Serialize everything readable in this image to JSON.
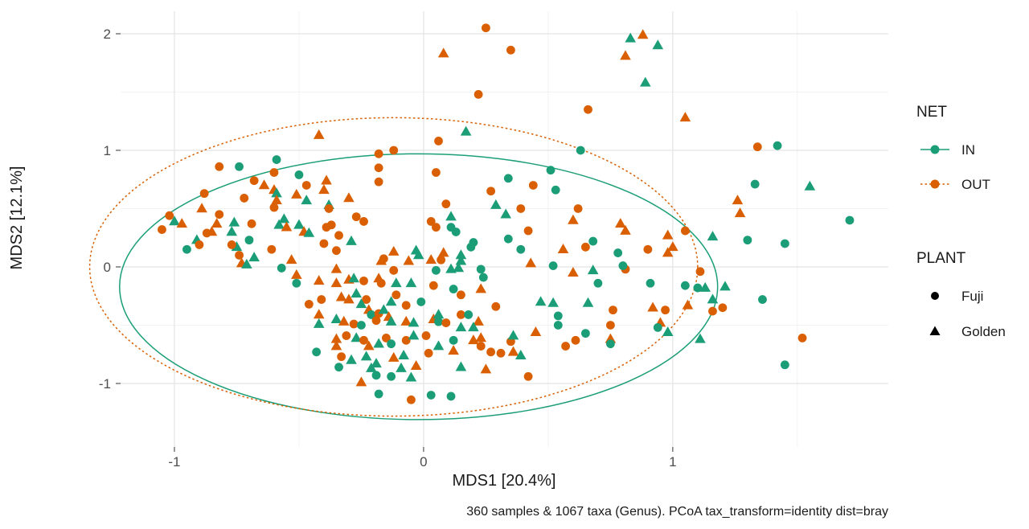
{
  "chart_data": {
    "type": "scatter",
    "xlabel": "MDS1 [20.4%]",
    "ylabel": "MDS2 [12.1%]",
    "caption": "360 samples & 1067 taxa (Genus). PCoA tax_transform=identity dist=bray",
    "x_axis": {
      "ticks": [
        -1,
        0,
        1
      ],
      "minor": [
        -0.5,
        0.5,
        1.5
      ],
      "range": [
        -1.216,
        1.865
      ]
    },
    "y_axis": {
      "ticks": [
        -1,
        0,
        1,
        2
      ],
      "minor": [
        -0.5,
        0.5,
        1.5
      ],
      "range": [
        -1.545,
        2.193
      ]
    },
    "groups": {
      "net": {
        "title": "NET",
        "levels": [
          "IN",
          "OUT"
        ],
        "colors": [
          "#1b9e77",
          "#d95f02"
        ],
        "linetypes": [
          "solid",
          "dashed"
        ]
      },
      "plant": {
        "title": "PLANT",
        "levels": [
          "Fuji",
          "Golden"
        ],
        "shapes": [
          "circle",
          "triangle"
        ],
        "color": "#000000"
      }
    },
    "ellipses": [
      {
        "net": "IN",
        "cx": -0.02,
        "cy": -0.17,
        "rx": 1.2,
        "ry": 1.14
      },
      {
        "net": "OUT",
        "cx": -0.12,
        "cy": 0.0,
        "rx": 1.22,
        "ry": 1.28
      }
    ],
    "points": [
      [
        0.25,
        2.05,
        1,
        0
      ],
      [
        0.35,
        1.86,
        1,
        0
      ],
      [
        0.08,
        1.83,
        1,
        1
      ],
      [
        0.83,
        1.96,
        0,
        1
      ],
      [
        0.88,
        1.99,
        1,
        1
      ],
      [
        0.94,
        1.9,
        0,
        1
      ],
      [
        0.81,
        1.81,
        1,
        1
      ],
      [
        0.89,
        1.58,
        0,
        1
      ],
      [
        0.22,
        1.48,
        1,
        0
      ],
      [
        0.66,
        1.35,
        1,
        0
      ],
      [
        1.05,
        1.28,
        1,
        1
      ],
      [
        -0.82,
        0.86,
        1,
        0
      ],
      [
        -0.74,
        0.86,
        0,
        0
      ],
      [
        -0.59,
        0.92,
        0,
        0
      ],
      [
        -0.6,
        0.81,
        1,
        0
      ],
      [
        -0.5,
        0.79,
        0,
        0
      ],
      [
        -0.68,
        0.74,
        1,
        0
      ],
      [
        -0.64,
        0.7,
        1,
        1
      ],
      [
        -0.47,
        0.7,
        1,
        0
      ],
      [
        -0.6,
        0.66,
        1,
        1
      ],
      [
        -0.88,
        0.63,
        1,
        0
      ],
      [
        -0.59,
        0.63,
        0,
        1
      ],
      [
        -0.51,
        0.62,
        1,
        1
      ],
      [
        -0.72,
        0.59,
        1,
        0
      ],
      [
        -0.59,
        0.57,
        1,
        1
      ],
      [
        -0.6,
        0.51,
        1,
        0
      ],
      [
        -0.47,
        0.57,
        0,
        1
      ],
      [
        -0.89,
        0.5,
        1,
        1
      ],
      [
        -1.02,
        0.44,
        1,
        0
      ],
      [
        -1.0,
        0.39,
        0,
        1
      ],
      [
        -0.97,
        0.37,
        1,
        1
      ],
      [
        -0.82,
        0.45,
        1,
        0
      ],
      [
        -0.83,
        0.37,
        1,
        1
      ],
      [
        -0.76,
        0.38,
        0,
        1
      ],
      [
        -0.56,
        0.41,
        0,
        1
      ],
      [
        -0.58,
        0.36,
        0,
        1
      ],
      [
        -0.55,
        0.34,
        1,
        1
      ],
      [
        -1.05,
        0.32,
        1,
        0
      ],
      [
        -0.69,
        0.37,
        1,
        0
      ],
      [
        -0.5,
        0.36,
        0,
        1
      ],
      [
        -0.48,
        0.3,
        1,
        1
      ],
      [
        -0.46,
        0.29,
        0,
        1
      ],
      [
        -0.87,
        0.29,
        1,
        0
      ],
      [
        -0.85,
        0.3,
        1,
        1
      ],
      [
        -0.77,
        0.3,
        0,
        1
      ],
      [
        -0.7,
        0.23,
        0,
        0
      ],
      [
        -0.91,
        0.23,
        0,
        1
      ],
      [
        -0.9,
        0.19,
        1,
        0
      ],
      [
        -0.95,
        0.15,
        0,
        0
      ],
      [
        -0.75,
        0.17,
        0,
        1
      ],
      [
        -0.77,
        0.19,
        1,
        0
      ],
      [
        -0.61,
        0.15,
        1,
        0
      ],
      [
        -0.74,
        0.1,
        1,
        0
      ],
      [
        -0.73,
        0.03,
        1,
        1
      ],
      [
        -0.68,
        0.08,
        0,
        1
      ],
      [
        -0.57,
        -0.01,
        0,
        0
      ],
      [
        -0.53,
        0.06,
        1,
        1
      ],
      [
        -0.71,
        0.02,
        0,
        1
      ],
      [
        -0.51,
        -0.07,
        1,
        1
      ],
      [
        -0.51,
        -0.14,
        0,
        0
      ],
      [
        -0.46,
        -0.32,
        1,
        0
      ],
      [
        -0.42,
        1.13,
        1,
        1
      ],
      [
        0.17,
        1.16,
        0,
        1
      ],
      [
        0.06,
        1.08,
        1,
        0
      ],
      [
        -0.18,
        0.97,
        1,
        0
      ],
      [
        -0.12,
        1.0,
        1,
        0
      ],
      [
        -0.18,
        0.85,
        1,
        0
      ],
      [
        0.05,
        0.81,
        1,
        0
      ],
      [
        -0.18,
        0.73,
        1,
        0
      ],
      [
        0.34,
        0.76,
        0,
        0
      ],
      [
        -0.39,
        0.74,
        1,
        1
      ],
      [
        -0.4,
        0.66,
        1,
        1
      ],
      [
        0.27,
        0.65,
        1,
        0
      ],
      [
        -0.3,
        0.59,
        1,
        1
      ],
      [
        0.29,
        0.53,
        0,
        1
      ],
      [
        -0.38,
        0.53,
        0,
        1
      ],
      [
        -0.38,
        0.5,
        1,
        0
      ],
      [
        0.09,
        0.54,
        1,
        0
      ],
      [
        0.33,
        0.45,
        0,
        1
      ],
      [
        -0.27,
        0.43,
        1,
        0
      ],
      [
        -0.24,
        0.39,
        1,
        0
      ],
      [
        -0.37,
        0.36,
        1,
        0
      ],
      [
        -0.39,
        0.34,
        1,
        0
      ],
      [
        -0.34,
        0.27,
        1,
        0
      ],
      [
        0.03,
        0.39,
        1,
        0
      ],
      [
        0.05,
        0.34,
        1,
        0
      ],
      [
        0.11,
        0.43,
        0,
        1
      ],
      [
        0.11,
        0.34,
        0,
        0
      ],
      [
        0.13,
        0.3,
        0,
        0
      ],
      [
        -0.4,
        0.2,
        1,
        0
      ],
      [
        -0.29,
        0.22,
        0,
        1
      ],
      [
        -0.35,
        0.14,
        1,
        0
      ],
      [
        0.34,
        0.24,
        0,
        0
      ],
      [
        -0.12,
        0.13,
        1,
        1
      ],
      [
        -0.03,
        0.14,
        0,
        1
      ],
      [
        -0.02,
        0.1,
        0,
        1
      ],
      [
        0.08,
        0.12,
        1,
        1
      ],
      [
        0.19,
        0.17,
        0,
        0
      ],
      [
        0.2,
        0.21,
        0,
        0
      ],
      [
        0.15,
        0.1,
        0,
        1
      ],
      [
        -0.16,
        0.07,
        1,
        0
      ],
      [
        -0.17,
        0.05,
        1,
        1
      ],
      [
        -0.12,
        -0.03,
        1,
        0
      ],
      [
        -0.06,
        0.05,
        1,
        1
      ],
      [
        0.03,
        0.06,
        1,
        1
      ],
      [
        0.07,
        0.06,
        1,
        0
      ],
      [
        0.15,
        0.05,
        0,
        1
      ],
      [
        0.05,
        -0.03,
        0,
        0
      ],
      [
        0.11,
        -0.02,
        0,
        1
      ],
      [
        0.14,
        -0.01,
        0,
        1
      ],
      [
        0.23,
        -0.02,
        0,
        0
      ],
      [
        0.24,
        -0.09,
        0,
        0
      ],
      [
        -0.35,
        -0.02,
        1,
        1
      ],
      [
        -0.42,
        -0.12,
        1,
        1
      ],
      [
        -0.35,
        -0.14,
        1,
        1
      ],
      [
        -0.3,
        -0.11,
        1,
        1
      ],
      [
        -0.28,
        -0.1,
        0,
        1
      ],
      [
        -0.24,
        -0.12,
        1,
        0
      ],
      [
        -0.18,
        -0.1,
        1,
        1
      ],
      [
        -0.17,
        -0.14,
        1,
        0
      ],
      [
        -0.11,
        -0.14,
        0,
        1
      ],
      [
        -0.05,
        -0.14,
        0,
        1
      ],
      [
        0.04,
        -0.16,
        1,
        0
      ],
      [
        0.12,
        -0.19,
        0,
        0
      ],
      [
        0.15,
        -0.24,
        1,
        0
      ],
      [
        0.23,
        -0.19,
        1,
        1
      ],
      [
        0.29,
        -0.34,
        1,
        0
      ],
      [
        -0.41,
        -0.28,
        1,
        0
      ],
      [
        -0.33,
        -0.26,
        1,
        1
      ],
      [
        -0.3,
        -0.28,
        1,
        1
      ],
      [
        -0.27,
        -0.23,
        0,
        1
      ],
      [
        -0.23,
        -0.28,
        1,
        0
      ],
      [
        -0.25,
        -0.32,
        0,
        1
      ],
      [
        -0.22,
        -0.37,
        1,
        1
      ],
      [
        -0.21,
        -0.41,
        0,
        0
      ],
      [
        -0.18,
        -0.4,
        1,
        0
      ],
      [
        -0.16,
        -0.37,
        0,
        1
      ],
      [
        -0.14,
        -0.43,
        1,
        1
      ],
      [
        -0.11,
        -0.24,
        1,
        0
      ],
      [
        -0.13,
        -0.3,
        0,
        1
      ],
      [
        -0.07,
        -0.33,
        1,
        0
      ],
      [
        -0.01,
        -0.3,
        0,
        0
      ],
      [
        -0.42,
        -0.41,
        1,
        1
      ],
      [
        -0.35,
        -0.45,
        0,
        1
      ],
      [
        -0.32,
        -0.47,
        1,
        1
      ],
      [
        -0.28,
        -0.49,
        1,
        0
      ],
      [
        -0.25,
        -0.5,
        0,
        0
      ],
      [
        -0.19,
        -0.46,
        1,
        0
      ],
      [
        -0.13,
        -0.47,
        0,
        1
      ],
      [
        -0.07,
        -0.47,
        1,
        1
      ],
      [
        -0.04,
        -0.48,
        0,
        1
      ],
      [
        0.01,
        -0.59,
        1,
        0
      ],
      [
        0.04,
        -0.45,
        1,
        1
      ],
      [
        0.06,
        -0.47,
        0,
        0
      ],
      [
        0.06,
        -0.41,
        0,
        1
      ],
      [
        0.09,
        -0.48,
        1,
        0
      ],
      [
        0.12,
        -0.63,
        0,
        0
      ],
      [
        0.15,
        -0.52,
        0,
        1
      ],
      [
        0.15,
        -0.41,
        1,
        0
      ],
      [
        0.18,
        -0.41,
        0,
        0
      ],
      [
        0.22,
        -0.47,
        1,
        1
      ],
      [
        0.2,
        -0.52,
        0,
        1
      ],
      [
        0.2,
        -0.63,
        1,
        1
      ],
      [
        0.23,
        -0.68,
        1,
        0
      ],
      [
        -0.42,
        -0.49,
        0,
        1
      ],
      [
        -0.35,
        -0.62,
        1,
        1
      ],
      [
        -0.31,
        -0.59,
        1,
        0
      ],
      [
        -0.27,
        -0.61,
        0,
        1
      ],
      [
        -0.24,
        -0.63,
        1,
        0
      ],
      [
        -0.22,
        -0.68,
        1,
        1
      ],
      [
        -0.18,
        -0.66,
        0,
        1
      ],
      [
        -0.15,
        -0.61,
        1,
        0
      ],
      [
        -0.13,
        -0.66,
        0,
        0
      ],
      [
        -0.07,
        -0.63,
        1,
        0
      ],
      [
        -0.04,
        -0.59,
        0,
        1
      ],
      [
        0.02,
        -0.74,
        1,
        0
      ],
      [
        0.06,
        -0.68,
        0,
        1
      ],
      [
        0.12,
        -0.72,
        1,
        1
      ],
      [
        -0.43,
        -0.73,
        0,
        0
      ],
      [
        -0.35,
        -0.68,
        1,
        1
      ],
      [
        -0.33,
        -0.77,
        1,
        0
      ],
      [
        -0.23,
        -0.77,
        0,
        1
      ],
      [
        -0.12,
        -0.78,
        1,
        1
      ],
      [
        -0.08,
        -0.76,
        0,
        1
      ],
      [
        0.27,
        -0.73,
        1,
        0
      ],
      [
        0.31,
        -0.74,
        1,
        0
      ],
      [
        0.23,
        -0.61,
        1,
        1
      ],
      [
        0.35,
        -0.64,
        1,
        0
      ],
      [
        -0.34,
        -0.86,
        0,
        0
      ],
      [
        -0.29,
        -0.8,
        0,
        1
      ],
      [
        -0.21,
        -0.87,
        0,
        1
      ],
      [
        -0.19,
        -0.83,
        0,
        1
      ],
      [
        -0.25,
        -0.99,
        1,
        1
      ],
      [
        -0.19,
        -0.93,
        0,
        0
      ],
      [
        -0.13,
        -0.94,
        0,
        0
      ],
      [
        -0.09,
        -0.87,
        0,
        1
      ],
      [
        -0.03,
        -0.85,
        1,
        1
      ],
      [
        -0.05,
        -0.95,
        0,
        1
      ],
      [
        0.15,
        -0.86,
        0,
        1
      ],
      [
        0.25,
        -0.88,
        1,
        1
      ],
      [
        -0.18,
        -1.09,
        0,
        0
      ],
      [
        -0.05,
        -1.14,
        1,
        0
      ],
      [
        0.03,
        -1.1,
        0,
        0
      ],
      [
        0.11,
        -1.11,
        0,
        0
      ],
      [
        0.63,
        1.0,
        0,
        0
      ],
      [
        0.51,
        0.83,
        0,
        0
      ],
      [
        0.44,
        0.7,
        1,
        0
      ],
      [
        0.53,
        0.66,
        0,
        0
      ],
      [
        0.39,
        0.5,
        1,
        0
      ],
      [
        0.62,
        0.5,
        1,
        0
      ],
      [
        0.6,
        0.4,
        1,
        1
      ],
      [
        0.79,
        0.37,
        1,
        1
      ],
      [
        0.81,
        0.31,
        1,
        1
      ],
      [
        0.42,
        0.31,
        1,
        0
      ],
      [
        0.39,
        0.15,
        0,
        0
      ],
      [
        0.68,
        0.22,
        0,
        0
      ],
      [
        0.65,
        0.17,
        1,
        0
      ],
      [
        0.56,
        0.15,
        1,
        1
      ],
      [
        0.78,
        0.12,
        0,
        0
      ],
      [
        0.9,
        0.15,
        1,
        0
      ],
      [
        0.98,
        0.27,
        1,
        1
      ],
      [
        1.0,
        0.17,
        1,
        1
      ],
      [
        0.98,
        0.12,
        1,
        1
      ],
      [
        1.05,
        0.31,
        1,
        0
      ],
      [
        0.43,
        0.03,
        1,
        1
      ],
      [
        0.52,
        0.01,
        0,
        0
      ],
      [
        0.6,
        -0.05,
        1,
        1
      ],
      [
        0.68,
        -0.03,
        0,
        1
      ],
      [
        0.81,
        -0.02,
        1,
        0
      ],
      [
        0.8,
        0.01,
        0,
        0
      ],
      [
        1.11,
        -0.04,
        1,
        0
      ],
      [
        0.7,
        -0.14,
        0,
        0
      ],
      [
        0.91,
        -0.14,
        0,
        0
      ],
      [
        1.05,
        -0.16,
        0,
        0
      ],
      [
        1.1,
        -0.18,
        0,
        0
      ],
      [
        0.47,
        -0.3,
        0,
        1
      ],
      [
        0.52,
        -0.31,
        0,
        1
      ],
      [
        0.66,
        -0.31,
        0,
        1
      ],
      [
        1.06,
        -0.33,
        1,
        1
      ],
      [
        0.92,
        -0.35,
        1,
        1
      ],
      [
        0.97,
        -0.37,
        1,
        0
      ],
      [
        0.76,
        -0.37,
        1,
        0
      ],
      [
        0.54,
        -0.42,
        0,
        0
      ],
      [
        0.54,
        -0.5,
        0,
        0
      ],
      [
        0.95,
        -0.48,
        1,
        1
      ],
      [
        0.94,
        -0.52,
        0,
        0
      ],
      [
        0.98,
        -0.56,
        0,
        1
      ],
      [
        0.45,
        -0.56,
        1,
        1
      ],
      [
        0.36,
        -0.59,
        0,
        1
      ],
      [
        0.65,
        -0.57,
        0,
        0
      ],
      [
        0.61,
        -0.63,
        1,
        0
      ],
      [
        0.57,
        -0.68,
        1,
        0
      ],
      [
        0.75,
        -0.5,
        1,
        0
      ],
      [
        0.75,
        -0.62,
        1,
        1
      ],
      [
        0.75,
        -0.66,
        0,
        0
      ],
      [
        0.36,
        -0.73,
        1,
        1
      ],
      [
        0.39,
        -0.76,
        0,
        1
      ],
      [
        0.42,
        -0.94,
        1,
        0
      ],
      [
        1.11,
        -0.62,
        0,
        1
      ],
      [
        1.34,
        1.03,
        1,
        0
      ],
      [
        1.42,
        1.04,
        0,
        0
      ],
      [
        1.33,
        0.71,
        0,
        0
      ],
      [
        1.55,
        0.69,
        0,
        1
      ],
      [
        1.26,
        0.57,
        1,
        1
      ],
      [
        1.27,
        0.46,
        1,
        1
      ],
      [
        1.71,
        0.4,
        0,
        0
      ],
      [
        1.16,
        0.26,
        0,
        1
      ],
      [
        1.3,
        0.23,
        0,
        0
      ],
      [
        1.45,
        0.2,
        0,
        0
      ],
      [
        1.21,
        -0.17,
        0,
        1
      ],
      [
        1.13,
        -0.18,
        0,
        1
      ],
      [
        1.16,
        -0.28,
        0,
        1
      ],
      [
        1.16,
        -0.38,
        1,
        0
      ],
      [
        1.2,
        -0.35,
        1,
        0
      ],
      [
        1.36,
        -0.28,
        0,
        0
      ],
      [
        1.52,
        -0.61,
        1,
        0
      ],
      [
        1.45,
        -0.84,
        0,
        0
      ]
    ]
  }
}
